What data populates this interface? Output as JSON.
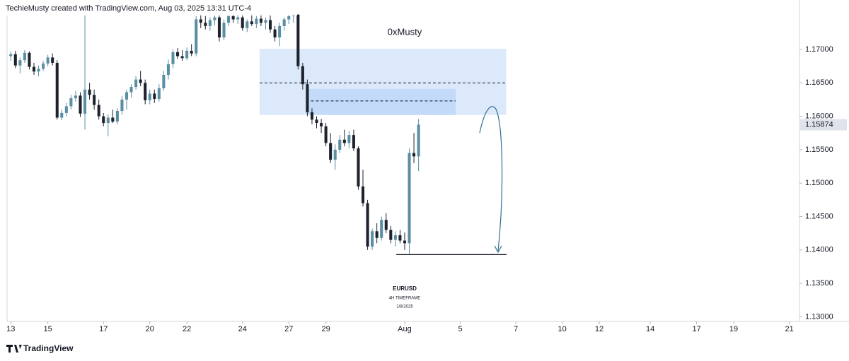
{
  "header": "TechieMusty created with TradingView.com, Aug 03, 2025 13:31 UTC-4",
  "footer": "TradingView",
  "chart_data": {
    "type": "candlestick",
    "author_label": "0xMusty",
    "annotation": {
      "symbol": "EURUSD",
      "timeframe": "4H TIMEFRAME",
      "date": "1/8/2025"
    },
    "up_color": "#5a8ea3",
    "down_color": "#1e222d",
    "ylim": [
      1.1293,
      1.1755
    ],
    "yticks": [
      {
        "value": 1.13,
        "label": "1.13000"
      },
      {
        "value": 1.135,
        "label": "1.13500"
      },
      {
        "value": 1.14,
        "label": "1.14000"
      },
      {
        "value": 1.145,
        "label": "1.14500"
      },
      {
        "value": 1.15,
        "label": "1.15000"
      },
      {
        "value": 1.155,
        "label": "1.15500"
      },
      {
        "value": 1.16,
        "label": "1.16000"
      },
      {
        "value": 1.165,
        "label": "1.16500"
      },
      {
        "value": 1.17,
        "label": "1.17000"
      }
    ],
    "last_price": 1.15874,
    "xlim": [
      -0.8,
      170.2
    ],
    "xticks": [
      {
        "value": 0,
        "label": "13"
      },
      {
        "value": 8,
        "label": "15"
      },
      {
        "value": 20,
        "label": "17"
      },
      {
        "value": 30,
        "label": "20"
      },
      {
        "value": 38,
        "label": "22"
      },
      {
        "value": 50,
        "label": "24"
      },
      {
        "value": 60,
        "label": "27"
      },
      {
        "value": 68,
        "label": "29"
      },
      {
        "value": 85,
        "label": "Aug"
      },
      {
        "value": 97,
        "label": "5"
      },
      {
        "value": 109,
        "label": "7"
      },
      {
        "value": 119,
        "label": "10"
      },
      {
        "value": 127,
        "label": "12"
      },
      {
        "value": 138,
        "label": "14"
      },
      {
        "value": 148,
        "label": "17"
      },
      {
        "value": 156,
        "label": "19"
      },
      {
        "value": 168,
        "label": "21"
      }
    ],
    "zones": [
      {
        "x": [
          53.7,
          106.9
        ],
        "y": [
          1.1602,
          1.1701
        ],
        "color": "#dbe9fb",
        "mid": 1.165
      },
      {
        "x": [
          63.7,
          96
        ],
        "y": [
          1.1602,
          1.1641
        ],
        "color": "#c3daf8",
        "mid": 1.1623
      }
    ],
    "target": {
      "x": [
        83.2,
        107
      ],
      "y": 1.1393
    },
    "ohlc": [
      [
        1.169,
        1.1697,
        1.1683,
        1.1693
      ],
      [
        1.1693,
        1.1698,
        1.1672,
        1.1676
      ],
      [
        1.1676,
        1.1688,
        1.1664,
        1.1684
      ],
      [
        1.1684,
        1.1699,
        1.168,
        1.1695
      ],
      [
        1.1695,
        1.1697,
        1.167,
        1.1674
      ],
      [
        1.1674,
        1.168,
        1.1662,
        1.1667
      ],
      [
        1.1667,
        1.1676,
        1.166,
        1.1671
      ],
      [
        1.1671,
        1.1683,
        1.1668,
        1.1679
      ],
      [
        1.1679,
        1.1692,
        1.1675,
        1.1688
      ],
      [
        1.1688,
        1.1694,
        1.1676,
        1.168
      ],
      [
        1.168,
        1.1684,
        1.1595,
        1.1598
      ],
      [
        1.1598,
        1.161,
        1.1594,
        1.1605
      ],
      [
        1.1605,
        1.162,
        1.16,
        1.1615
      ],
      [
        1.1615,
        1.1632,
        1.161,
        1.1627
      ],
      [
        1.1627,
        1.1638,
        1.1622,
        1.1631
      ],
      [
        1.1631,
        1.1636,
        1.1599,
        1.1604
      ],
      [
        1.1604,
        1.1752,
        1.158,
        1.164
      ],
      [
        1.164,
        1.165,
        1.1625,
        1.1632
      ],
      [
        1.1632,
        1.164,
        1.161,
        1.1617
      ],
      [
        1.1617,
        1.1625,
        1.1595,
        1.16
      ],
      [
        1.16,
        1.1605,
        1.1585,
        1.159
      ],
      [
        1.159,
        1.1603,
        1.157,
        1.1598
      ],
      [
        1.1598,
        1.161,
        1.159,
        1.1592
      ],
      [
        1.1592,
        1.1612,
        1.1588,
        1.1608
      ],
      [
        1.1608,
        1.163,
        1.1602,
        1.1625
      ],
      [
        1.1625,
        1.164,
        1.161,
        1.1636
      ],
      [
        1.1636,
        1.1648,
        1.1628,
        1.1644
      ],
      [
        1.1644,
        1.166,
        1.164,
        1.1655
      ],
      [
        1.1655,
        1.1668,
        1.1645,
        1.165
      ],
      [
        1.165,
        1.1655,
        1.1618,
        1.1624
      ],
      [
        1.1624,
        1.164,
        1.1618,
        1.1634
      ],
      [
        1.1634,
        1.164,
        1.162,
        1.1626
      ],
      [
        1.1626,
        1.1648,
        1.1622,
        1.1642
      ],
      [
        1.1642,
        1.1668,
        1.1638,
        1.1662
      ],
      [
        1.1662,
        1.1685,
        1.1655,
        1.1678
      ],
      [
        1.1678,
        1.17,
        1.1672,
        1.1696
      ],
      [
        1.1696,
        1.1702,
        1.1686,
        1.169
      ],
      [
        1.169,
        1.1699,
        1.1683,
        1.1687
      ],
      [
        1.1687,
        1.1703,
        1.1684,
        1.1698
      ],
      [
        1.1698,
        1.1708,
        1.169,
        1.1694
      ],
      [
        1.1694,
        1.175,
        1.169,
        1.1745
      ],
      [
        1.1745,
        1.1753,
        1.1732,
        1.174
      ],
      [
        1.174,
        1.175,
        1.173,
        1.1735
      ],
      [
        1.1735,
        1.1748,
        1.1728,
        1.1744
      ],
      [
        1.1744,
        1.1753,
        1.1736,
        1.1748
      ],
      [
        1.1748,
        1.1753,
        1.1712,
        1.1718
      ],
      [
        1.1718,
        1.1745,
        1.1714,
        1.174
      ],
      [
        1.174,
        1.1753,
        1.1735,
        1.175
      ],
      [
        1.175,
        1.1753,
        1.174,
        1.1745
      ],
      [
        1.1745,
        1.1753,
        1.1738,
        1.1748
      ],
      [
        1.1748,
        1.1752,
        1.1728,
        1.1732
      ],
      [
        1.1732,
        1.1745,
        1.1726,
        1.1742
      ],
      [
        1.1742,
        1.1753,
        1.1735,
        1.1738
      ],
      [
        1.1738,
        1.175,
        1.1732,
        1.1746
      ],
      [
        1.1746,
        1.1753,
        1.1735,
        1.174
      ],
      [
        1.174,
        1.1748,
        1.173,
        1.1744
      ],
      [
        1.1744,
        1.1752,
        1.1725,
        1.173
      ],
      [
        1.173,
        1.1735,
        1.1712,
        1.1718
      ],
      [
        1.1718,
        1.174,
        1.1705,
        1.1735
      ],
      [
        1.1735,
        1.1748,
        1.1728,
        1.1745
      ],
      [
        1.1745,
        1.1753,
        1.1738,
        1.175
      ],
      [
        1.175,
        1.1753,
        1.174,
        1.1752
      ],
      [
        1.1752,
        1.1753,
        1.167,
        1.1675
      ],
      [
        1.1675,
        1.168,
        1.164,
        1.1648
      ],
      [
        1.1648,
        1.1655,
        1.16,
        1.1606
      ],
      [
        1.1606,
        1.1612,
        1.1588,
        1.1595
      ],
      [
        1.1595,
        1.16,
        1.1582,
        1.159
      ],
      [
        1.159,
        1.1596,
        1.1575,
        1.1585
      ],
      [
        1.1585,
        1.159,
        1.1555,
        1.156
      ],
      [
        1.156,
        1.1575,
        1.153,
        1.1535
      ],
      [
        1.1535,
        1.1558,
        1.152,
        1.155
      ],
      [
        1.155,
        1.1572,
        1.1545,
        1.1565
      ],
      [
        1.1565,
        1.158,
        1.1555,
        1.156
      ],
      [
        1.156,
        1.1578,
        1.1552,
        1.1572
      ],
      [
        1.1572,
        1.158,
        1.1548,
        1.1552
      ],
      [
        1.1552,
        1.1555,
        1.149,
        1.1495
      ],
      [
        1.1495,
        1.152,
        1.1465,
        1.147
      ],
      [
        1.147,
        1.1475,
        1.14,
        1.1405
      ],
      [
        1.1405,
        1.1432,
        1.14,
        1.1428
      ],
      [
        1.1428,
        1.144,
        1.141,
        1.1418
      ],
      [
        1.1418,
        1.145,
        1.1414,
        1.1445
      ],
      [
        1.1445,
        1.1455,
        1.1425,
        1.143
      ],
      [
        1.143,
        1.1436,
        1.141,
        1.1415
      ],
      [
        1.1415,
        1.1428,
        1.1405,
        1.1422
      ],
      [
        1.1422,
        1.143,
        1.141,
        1.1414
      ],
      [
        1.1414,
        1.1426,
        1.14,
        1.141
      ],
      [
        1.141,
        1.1552,
        1.1393,
        1.1545
      ],
      [
        1.1545,
        1.1575,
        1.153,
        1.154
      ],
      [
        1.154,
        1.1596,
        1.1518,
        1.15874
      ]
    ]
  }
}
